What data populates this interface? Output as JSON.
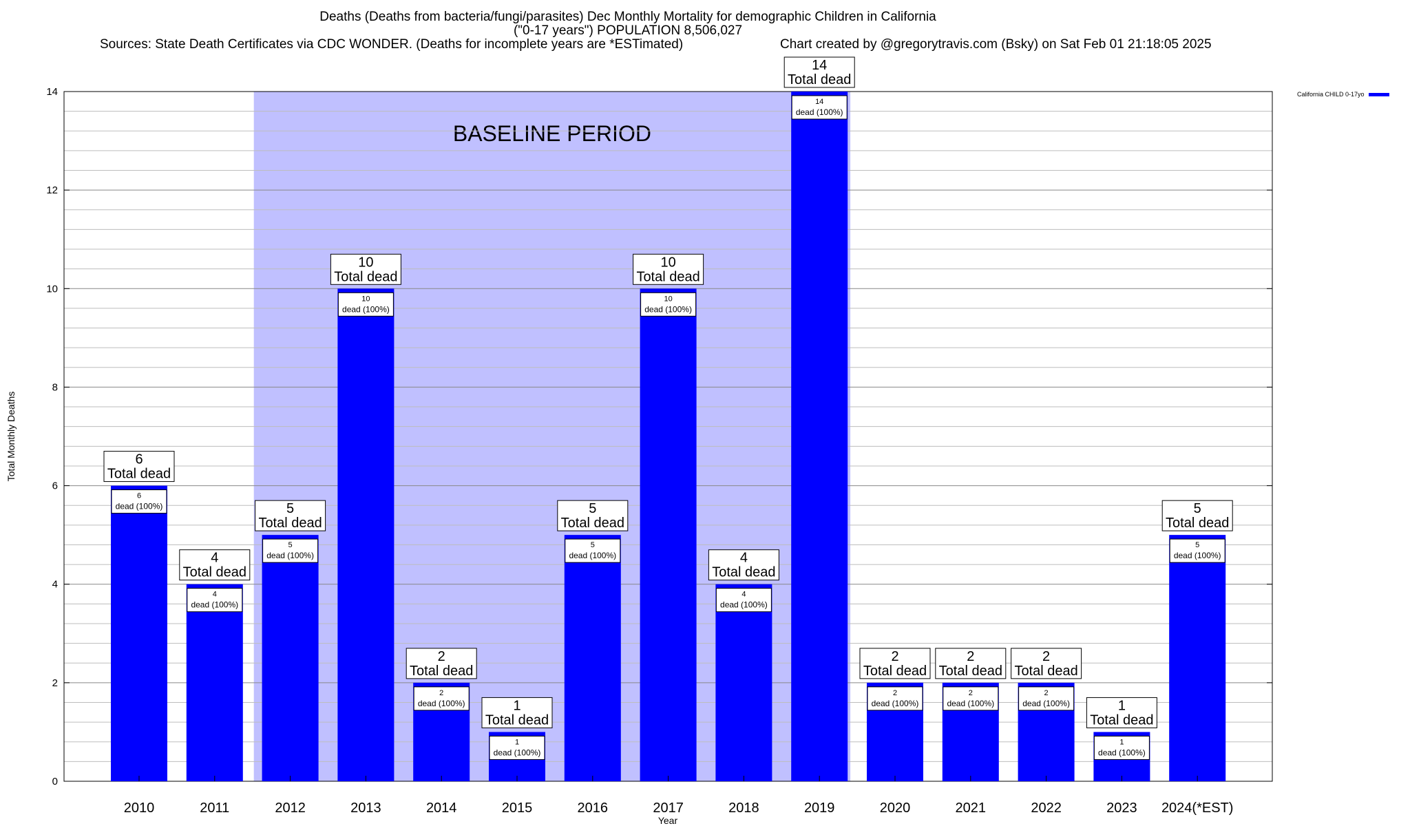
{
  "header": {
    "title_line1": "Deaths (Deaths from bacteria/fungi/parasites) Dec Monthly Mortality for demographic Children in California",
    "title_line2": "(\"0-17 years\") POPULATION 8,506,027",
    "sources": "Sources: State Death Certificates via CDC WONDER. (Deaths for incomplete years are *ESTimated)",
    "credit": "Chart created by @gregorytravis.com (Bsky) on Sat Feb 01 21:18:05 2025"
  },
  "legend": {
    "label": "California CHILD 0-17yo"
  },
  "chart_data": {
    "type": "bar",
    "xlabel": "Year",
    "ylabel": "Total Monthly Deaths",
    "ylim": [
      0,
      14
    ],
    "yticks": [
      0,
      2,
      4,
      6,
      8,
      10,
      12,
      14
    ],
    "grid": true,
    "categories": [
      "2010",
      "2011",
      "2012",
      "2013",
      "2014",
      "2015",
      "2016",
      "2017",
      "2018",
      "2019",
      "2020",
      "2021",
      "2022",
      "2023",
      "2024(*EST)"
    ],
    "series": [
      {
        "name": "California CHILD 0-17yo",
        "color": "#0000ff",
        "values": [
          6,
          4,
          5,
          10,
          2,
          1,
          5,
          10,
          4,
          14,
          2,
          2,
          2,
          1,
          5
        ]
      }
    ],
    "top_label_text": "Total dead",
    "inner_label_text": "dead (100%)",
    "baseline_period": {
      "label": "BASELINE PERIOD",
      "from": "2012",
      "to": "2019",
      "color": "#c0c0ff"
    }
  }
}
